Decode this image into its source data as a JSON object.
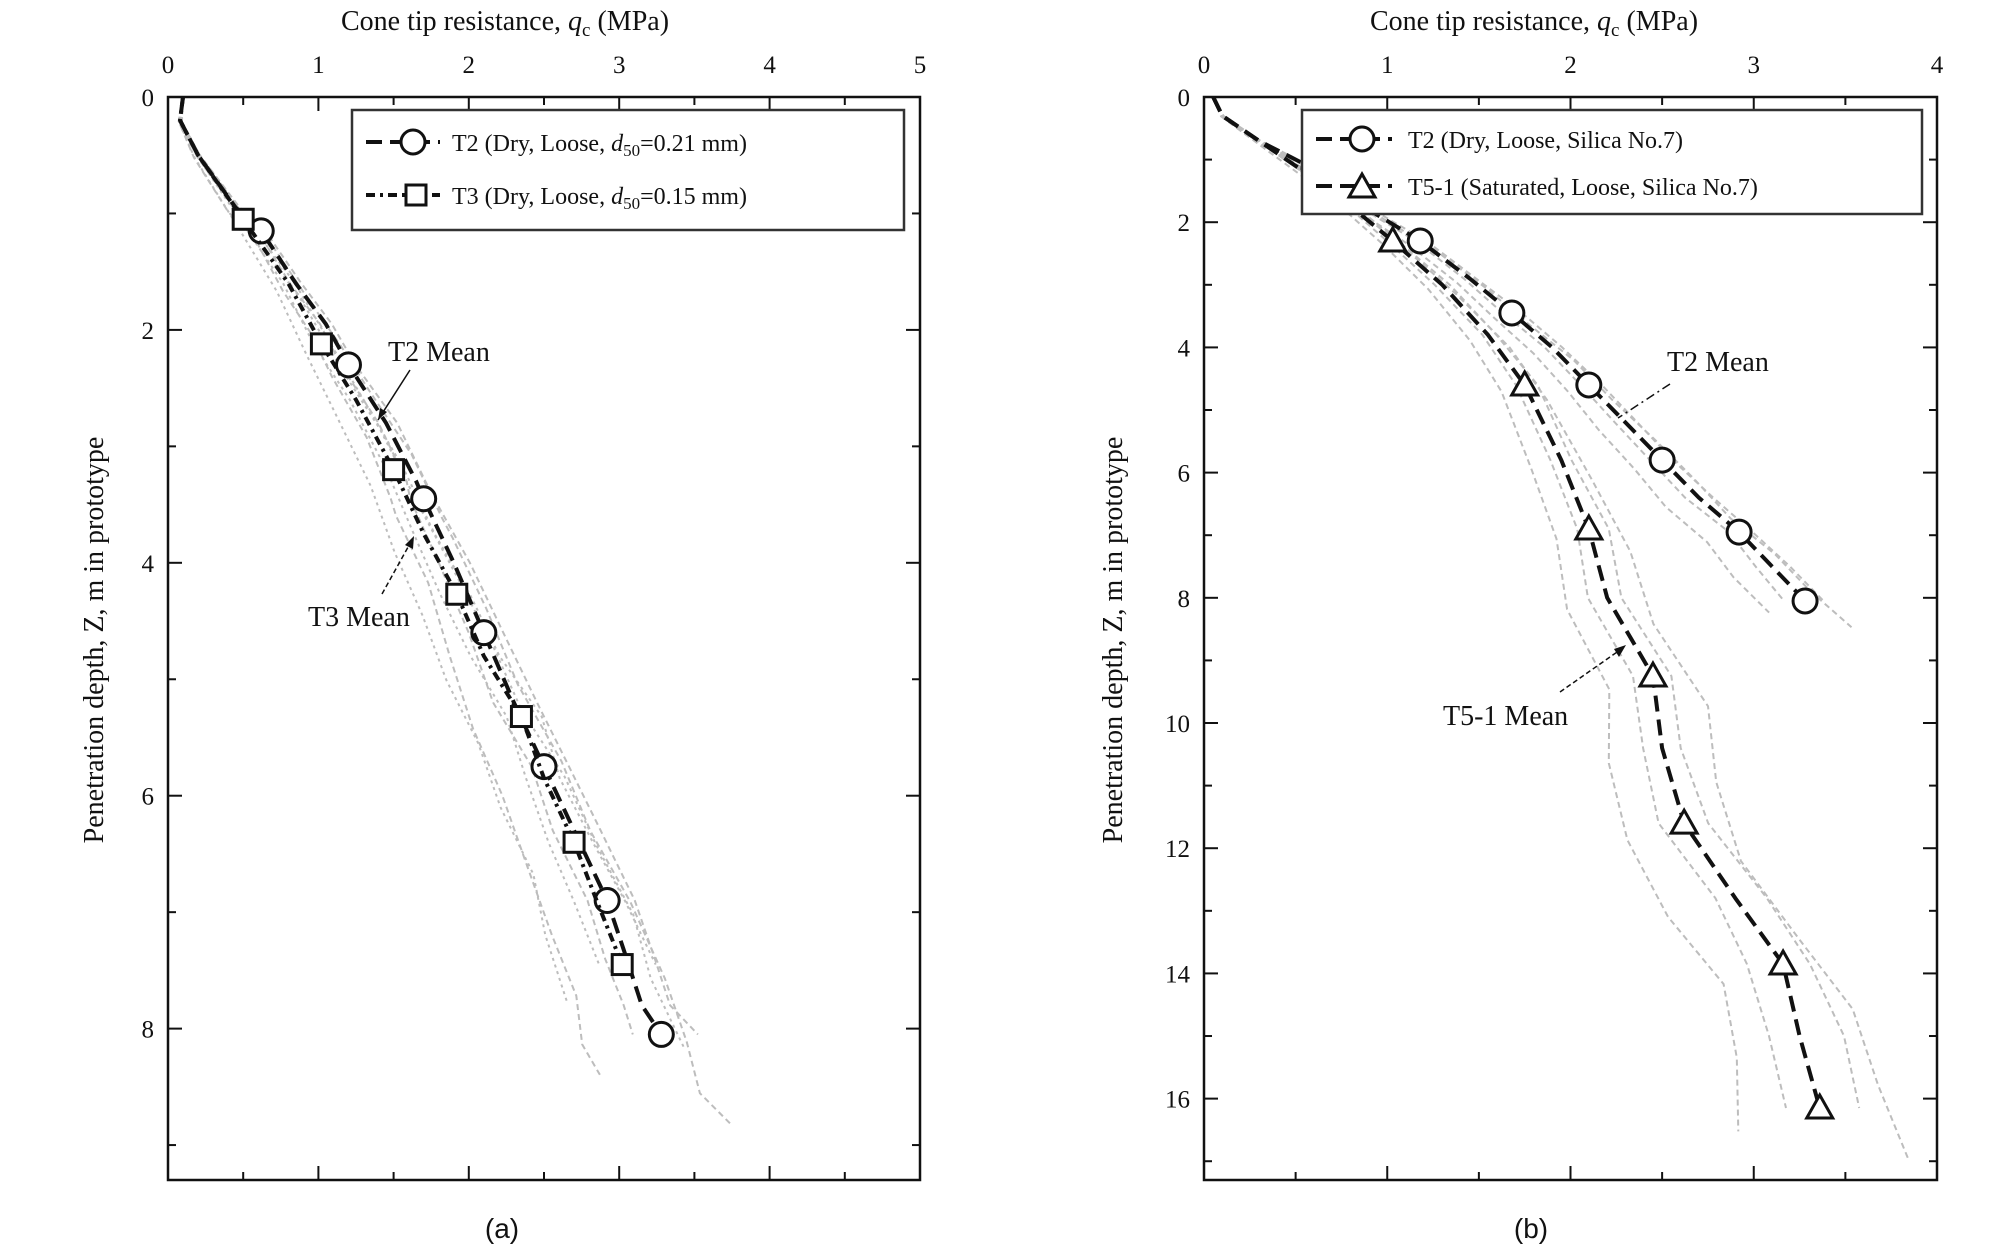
{
  "chart_data": [
    {
      "type": "line",
      "panel": "(a)",
      "xlabel_main": "Cone tip resistance, ",
      "xlabel_sym": "q",
      "xlabel_sub": "c",
      "xlabel_unit": " (MPa)",
      "ylabel": "Penetration depth, Z, m in prototype",
      "xlim": [
        0,
        5
      ],
      "ylim": [
        0,
        9.3
      ],
      "x_axis_position": "top",
      "y_inverted": true,
      "xticks": [
        "0",
        "1",
        "2",
        "3",
        "4",
        "5"
      ],
      "yticks": [
        "0",
        "2",
        "4",
        "6",
        "8"
      ],
      "grid": false,
      "legend_placement": "top-right",
      "series": [
        {
          "name": "T2 (Dry, Loose, ",
          "name_sym": "d",
          "name_sub": "50",
          "name_end": "=0.21 mm)",
          "marker": "circle",
          "dash": "dash",
          "points": [
            [
              0.1,
              0
            ],
            [
              0.08,
              0.2
            ],
            [
              0.2,
              0.5
            ],
            [
              0.45,
              0.95
            ],
            [
              0.62,
              1.15
            ],
            [
              0.85,
              1.6
            ],
            [
              1.05,
              1.95
            ],
            [
              1.2,
              2.3
            ],
            [
              1.45,
              2.8
            ],
            [
              1.65,
              3.3
            ],
            [
              1.7,
              3.45
            ],
            [
              1.9,
              4.0
            ],
            [
              2.1,
              4.6
            ],
            [
              2.3,
              5.2
            ],
            [
              2.5,
              5.75
            ],
            [
              2.7,
              6.3
            ],
            [
              2.92,
              6.9
            ],
            [
              3.05,
              7.4
            ],
            [
              3.15,
              7.8
            ],
            [
              3.28,
              8.05
            ]
          ],
          "markers": [
            [
              0.62,
              1.15
            ],
            [
              1.2,
              2.3
            ],
            [
              1.7,
              3.45
            ],
            [
              2.1,
              4.6
            ],
            [
              2.5,
              5.75
            ],
            [
              2.92,
              6.9
            ],
            [
              3.28,
              8.05
            ]
          ]
        },
        {
          "name": "T3 (Dry, Loose, ",
          "name_sym": "d",
          "name_sub": "50",
          "name_end": "=0.15 mm)",
          "marker": "square",
          "dash": "dashdot",
          "points": [
            [
              0.1,
              0
            ],
            [
              0.08,
              0.2
            ],
            [
              0.2,
              0.5
            ],
            [
              0.5,
              1.05
            ],
            [
              0.8,
              1.6
            ],
            [
              1.02,
              2.12
            ],
            [
              1.25,
              2.6
            ],
            [
              1.5,
              3.2
            ],
            [
              1.7,
              3.75
            ],
            [
              1.92,
              4.27
            ],
            [
              2.1,
              4.8
            ],
            [
              2.35,
              5.32
            ],
            [
              2.5,
              5.85
            ],
            [
              2.7,
              6.4
            ],
            [
              2.85,
              6.9
            ],
            [
              3.02,
              7.45
            ]
          ],
          "markers": [
            [
              0.5,
              1.05
            ],
            [
              1.02,
              2.12
            ],
            [
              1.5,
              3.2
            ],
            [
              1.92,
              4.27
            ],
            [
              2.35,
              5.32
            ],
            [
              2.7,
              6.4
            ],
            [
              3.02,
              7.45
            ]
          ]
        }
      ],
      "annotations": [
        {
          "text": "T2 Mean"
        },
        {
          "text": "T3 Mean"
        }
      ]
    },
    {
      "type": "line",
      "panel": "(b)",
      "xlabel_main": "Cone tip resistance, ",
      "xlabel_sym": "q",
      "xlabel_sub": "c",
      "xlabel_unit": " (MPa)",
      "ylabel": "Penetration depth, Z, m in prototype",
      "xlim": [
        0,
        4
      ],
      "ylim": [
        0,
        17.3
      ],
      "x_axis_position": "top",
      "y_inverted": true,
      "xticks": [
        "0",
        "1",
        "2",
        "3",
        "4"
      ],
      "yticks": [
        "0",
        "2",
        "4",
        "6",
        "8",
        "10",
        "12",
        "14",
        "16"
      ],
      "grid": false,
      "legend_placement": "top-left",
      "series": [
        {
          "name": "T2 (Dry, Loose, Silica No.7)",
          "marker": "circle",
          "dash": "dash",
          "points": [
            [
              0.05,
              0
            ],
            [
              0.1,
              0.3
            ],
            [
              0.3,
              0.7
            ],
            [
              0.6,
              1.15
            ],
            [
              0.9,
              1.8
            ],
            [
              1.18,
              2.3
            ],
            [
              1.45,
              2.9
            ],
            [
              1.68,
              3.45
            ],
            [
              1.9,
              4.0
            ],
            [
              2.1,
              4.6
            ],
            [
              2.3,
              5.2
            ],
            [
              2.5,
              5.8
            ],
            [
              2.7,
              6.4
            ],
            [
              2.92,
              6.95
            ],
            [
              3.1,
              7.5
            ],
            [
              3.28,
              8.05
            ]
          ],
          "markers": [
            [
              0.6,
              1.15
            ],
            [
              1.18,
              2.3
            ],
            [
              1.68,
              3.45
            ],
            [
              2.1,
              4.6
            ],
            [
              2.5,
              5.8
            ],
            [
              2.92,
              6.95
            ],
            [
              3.28,
              8.05
            ]
          ]
        },
        {
          "name": "T5-1 (Saturated, Loose, Silica No.7)",
          "marker": "triangle",
          "dash": "dash",
          "points": [
            [
              0.05,
              0
            ],
            [
              0.1,
              0.3
            ],
            [
              0.35,
              0.8
            ],
            [
              0.7,
              1.5
            ],
            [
              1.03,
              2.3
            ],
            [
              1.3,
              3.0
            ],
            [
              1.55,
              3.8
            ],
            [
              1.75,
              4.6
            ],
            [
              1.95,
              5.8
            ],
            [
              2.1,
              6.9
            ],
            [
              2.2,
              8.0
            ],
            [
              2.45,
              9.25
            ],
            [
              2.5,
              10.4
            ],
            [
              2.62,
              11.6
            ],
            [
              2.9,
              12.8
            ],
            [
              3.16,
              13.85
            ],
            [
              3.25,
              15.0
            ],
            [
              3.36,
              16.15
            ]
          ],
          "markers": [
            [
              1.03,
              2.3
            ],
            [
              1.75,
              4.6
            ],
            [
              2.1,
              6.9
            ],
            [
              2.45,
              9.25
            ],
            [
              2.62,
              11.6
            ],
            [
              3.16,
              13.85
            ],
            [
              3.36,
              16.15
            ]
          ]
        }
      ],
      "annotations": [
        {
          "text": "T2 Mean"
        },
        {
          "text": "T5-1 Mean"
        }
      ]
    }
  ],
  "styles": {
    "line_color": "#111111",
    "trial_color": "#bdbdbd",
    "legend_border": "#333333"
  }
}
